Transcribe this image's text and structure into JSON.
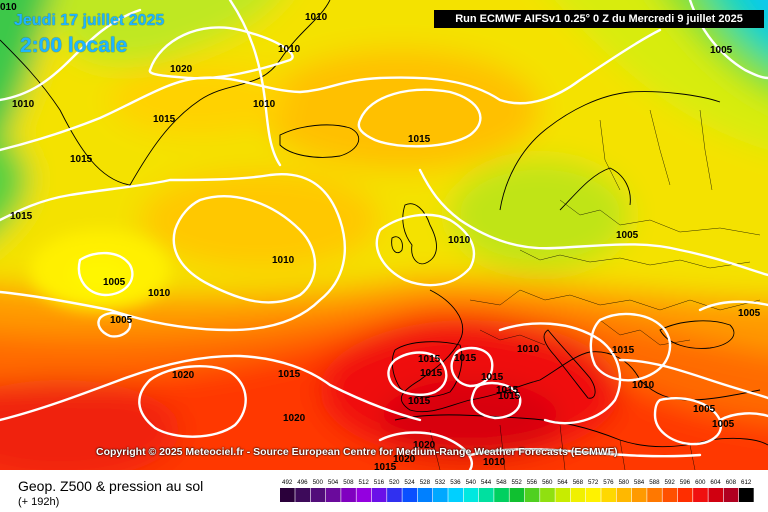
{
  "header": {
    "date_title": "Jeudi 17 juillet 2025",
    "time_title": "2:00 locale",
    "run_info": "Run ECMWF AIFSv1 0.25° 0 Z du Mercredi 9 juillet 2025",
    "corner_label": "010"
  },
  "map": {
    "isobar_labels": [
      {
        "id": "greenland-1010",
        "text": "1010"
      },
      {
        "id": "greenland-1020",
        "text": "1020"
      },
      {
        "id": "west-1010",
        "text": "1010"
      },
      {
        "id": "greenland-1015",
        "text": "1015"
      },
      {
        "id": "labrador-1015",
        "text": "1015"
      },
      {
        "id": "west-1015",
        "text": "1015"
      },
      {
        "id": "iceland-1010",
        "text": "1010"
      },
      {
        "id": "iceland-1010b",
        "text": "1010"
      },
      {
        "id": "north-atl-1015",
        "text": "1015"
      },
      {
        "id": "norway-1005",
        "text": "1005"
      },
      {
        "id": "atl-1010",
        "text": "1010"
      },
      {
        "id": "atl-1005a",
        "text": "1005"
      },
      {
        "id": "atl-1010b",
        "text": "1010"
      },
      {
        "id": "atl-1005b",
        "text": "1005"
      },
      {
        "id": "biscay-1010",
        "text": "1010"
      },
      {
        "id": "baltic-1005",
        "text": "1005"
      },
      {
        "id": "east-1005",
        "text": "1005"
      },
      {
        "id": "iberia-1015a",
        "text": "1015"
      },
      {
        "id": "iberia-1015b",
        "text": "1015"
      },
      {
        "id": "iberia-1015c",
        "text": "1015"
      },
      {
        "id": "med-1010",
        "text": "1010"
      },
      {
        "id": "balkan-1015",
        "text": "1015"
      },
      {
        "id": "balkan-1010",
        "text": "1010"
      },
      {
        "id": "azores-1020",
        "text": "1020"
      },
      {
        "id": "atl-south-1015",
        "text": "1015"
      },
      {
        "id": "morocco-1015",
        "text": "1015"
      },
      {
        "id": "algeria-1015a",
        "text": "1015"
      },
      {
        "id": "algeria-1015b",
        "text": "1015"
      },
      {
        "id": "algeria-1015c",
        "text": "1015"
      },
      {
        "id": "atl-south-1020",
        "text": "1020"
      },
      {
        "id": "greece-1005",
        "text": "1005"
      },
      {
        "id": "turkey-1005",
        "text": "1005"
      },
      {
        "id": "sahara-1020",
        "text": "1020"
      },
      {
        "id": "sahara-1010",
        "text": "1010"
      },
      {
        "id": "sahara-1015",
        "text": "1015"
      },
      {
        "id": "sahara-1020b",
        "text": "1020"
      }
    ]
  },
  "copyright": "Copyright © 2025 Meteociel.fr - Source European Centre for Medium-Range Weather Forecasts (ECMWF)",
  "footer": {
    "field_title": "Geop. Z500 & pression au sol",
    "lead_time": "(+ 192h)"
  },
  "legend": {
    "values": [
      "492",
      "496",
      "500",
      "504",
      "508",
      "512",
      "516",
      "520",
      "524",
      "528",
      "532",
      "536",
      "540",
      "544",
      "548",
      "552",
      "556",
      "560",
      "564",
      "568",
      "572",
      "576",
      "580",
      "584",
      "588",
      "592",
      "596",
      "600",
      "604",
      "608",
      "612"
    ],
    "colors": [
      "#2a003a",
      "#3d0a5a",
      "#520d7a",
      "#6a0a9c",
      "#8000c0",
      "#9400e0",
      "#6a10e8",
      "#3030f0",
      "#0a50ff",
      "#0080ff",
      "#00a8ff",
      "#00d0ff",
      "#00e8e0",
      "#00e0a0",
      "#00d060",
      "#10c030",
      "#50d020",
      "#90e010",
      "#c8ec00",
      "#f0f000",
      "#fff200",
      "#ffd800",
      "#ffb800",
      "#ff9a00",
      "#ff7800",
      "#ff5000",
      "#ff2e00",
      "#f01010",
      "#d00010",
      "#b00020",
      "#000000"
    ]
  }
}
